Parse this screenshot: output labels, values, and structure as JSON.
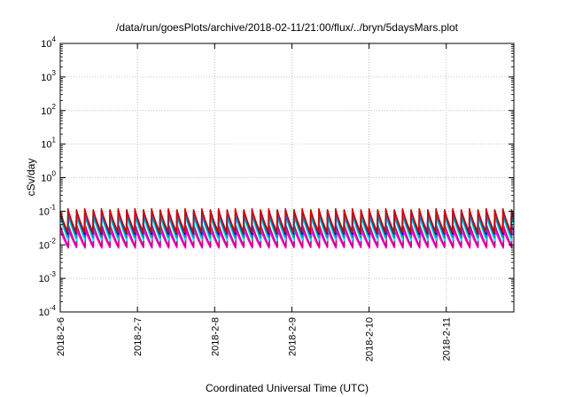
{
  "chart_data": {
    "type": "line",
    "title": "/data/run/goesPlots/archive/2018-02-11/21:00/flux/../bryn/5daysMars.plot",
    "xlabel": "Coordinated Universal Time (UTC)",
    "ylabel": "cSv/day",
    "yscale": "log",
    "ylim": [
      0.0001,
      10000
    ],
    "xlim": [
      "2018-02-06 00:00",
      "2018-02-11 21:00"
    ],
    "grid": true,
    "legend": "none",
    "y_ticks": [
      {
        "base": "10",
        "exp": "-4"
      },
      {
        "base": "10",
        "exp": "-3"
      },
      {
        "base": "10",
        "exp": "-2"
      },
      {
        "base": "10",
        "exp": "-1"
      },
      {
        "base": "10",
        "exp": "0"
      },
      {
        "base": "10",
        "exp": "1"
      },
      {
        "base": "10",
        "exp": "2"
      },
      {
        "base": "10",
        "exp": "3"
      },
      {
        "base": "10",
        "exp": "4"
      }
    ],
    "x_ticks": [
      {
        "label": "2018-2-6",
        "value": "2018-02-06 00:00"
      },
      {
        "label": "2018-2-7",
        "value": "2018-02-07 00:00"
      },
      {
        "label": "2018-2-8",
        "value": "2018-02-08 00:00"
      },
      {
        "label": "2018-2-9",
        "value": "2018-02-09 00:00"
      },
      {
        "label": "2018-2-10",
        "value": "2018-02-10 00:00"
      },
      {
        "label": "2018-2-11",
        "value": "2018-02-11 00:00"
      }
    ],
    "cycle_hours": 2.6,
    "series": [
      {
        "color": "#ff00ff",
        "peak": 0.028,
        "trough": 0.0078
      },
      {
        "color": "#cc0077",
        "peak": 0.04,
        "trough": 0.0085
      },
      {
        "color": "#00ffff",
        "peak": 0.075,
        "trough": 0.013
      },
      {
        "color": "#009999",
        "peak": 0.085,
        "trough": 0.016
      },
      {
        "color": "#0000ff",
        "peak": 0.11,
        "trough": 0.02
      },
      {
        "color": "#3366dd",
        "peak": 0.1,
        "trough": 0.024
      },
      {
        "color": "#cc0000",
        "peak": 0.12,
        "trough": 0.022
      }
    ]
  }
}
